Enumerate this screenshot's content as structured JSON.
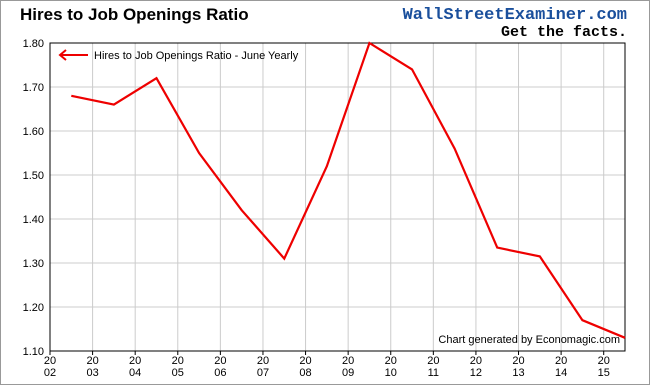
{
  "chart_data": {
    "type": "line",
    "title": "Hires to Job Openings Ratio",
    "brand": "WallStreetExaminer.com",
    "tagline": "Get the facts.",
    "credit": "Chart generated by Economagic.com",
    "legend_position": "upper left",
    "grid": true,
    "x": [
      2002.5,
      2003.5,
      2004.5,
      2005.5,
      2006.5,
      2007.5,
      2008.5,
      2009.5,
      2010.5,
      2011.5,
      2012.5,
      2013.5,
      2014.5,
      2015.5
    ],
    "series": [
      {
        "name": "Hires to Job Openings Ratio - June Yearly",
        "color": "#ee0000",
        "values": [
          1.68,
          1.66,
          1.72,
          1.55,
          1.42,
          1.31,
          1.52,
          1.8,
          1.74,
          1.56,
          1.335,
          1.315,
          1.17,
          1.13
        ]
      }
    ],
    "xlim": [
      2002,
      2015.5
    ],
    "xticks": [
      {
        "value": 2002,
        "label": "20\n02"
      },
      {
        "value": 2003,
        "label": "20\n03"
      },
      {
        "value": 2004,
        "label": "20\n04"
      },
      {
        "value": 2005,
        "label": "20\n05"
      },
      {
        "value": 2006,
        "label": "20\n06"
      },
      {
        "value": 2007,
        "label": "20\n07"
      },
      {
        "value": 2008,
        "label": "20\n08"
      },
      {
        "value": 2009,
        "label": "20\n09"
      },
      {
        "value": 2010,
        "label": "20\n10"
      },
      {
        "value": 2011,
        "label": "20\n11"
      },
      {
        "value": 2012,
        "label": "20\n12"
      },
      {
        "value": 2013,
        "label": "20\n13"
      },
      {
        "value": 2014,
        "label": "20\n14"
      },
      {
        "value": 2015,
        "label": "20\n15"
      }
    ],
    "ylim": [
      1.1,
      1.8
    ],
    "yticks": [
      {
        "value": 1.1,
        "label": "1.10"
      },
      {
        "value": 1.2,
        "label": "1.20"
      },
      {
        "value": 1.3,
        "label": "1.30"
      },
      {
        "value": 1.4,
        "label": "1.40"
      },
      {
        "value": 1.5,
        "label": "1.50"
      },
      {
        "value": 1.6,
        "label": "1.60"
      },
      {
        "value": 1.7,
        "label": "1.70"
      },
      {
        "value": 1.8,
        "label": "1.80"
      }
    ]
  }
}
